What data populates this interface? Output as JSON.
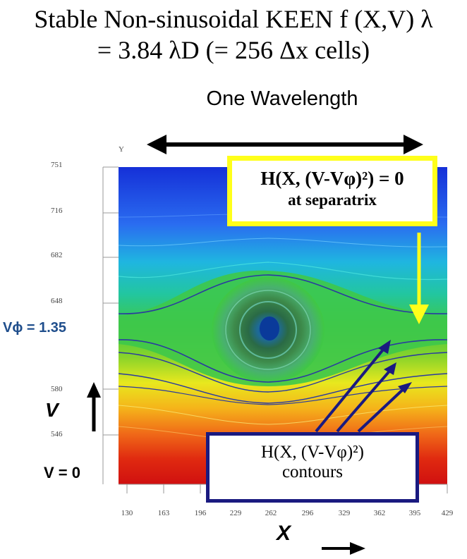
{
  "title": {
    "line1": "Stable Non-sinusoidal KEEN f (X,V) λ",
    "line2": "= 3.84 λD (=  256 Δx cells)"
  },
  "wavelength_label": "One Wavelength",
  "axis": {
    "y_letter": "Y",
    "x_letter": "X",
    "y_ticks": [
      "751",
      "716",
      "682",
      "648",
      "580",
      "546"
    ],
    "x_ticks": [
      "130",
      "163",
      "196",
      "229",
      "262",
      "296",
      "329",
      "362",
      "395",
      "429"
    ]
  },
  "labels": {
    "v_phi": "Vϕ = 1.35",
    "v_axis": "V",
    "v_zero": "V = 0",
    "x_axis": "X"
  },
  "separatrix_box": {
    "line1": "H(X, (V-Vφ)²) = 0",
    "line2": "at separatrix"
  },
  "contours_box": {
    "line1": "H(X, (V-Vφ)²)",
    "line2": "contours"
  },
  "colors": {
    "separatrix_border": "#ffff1a",
    "contours_border": "#1a1a80",
    "v_phi_text": "#1f4e8c"
  }
}
